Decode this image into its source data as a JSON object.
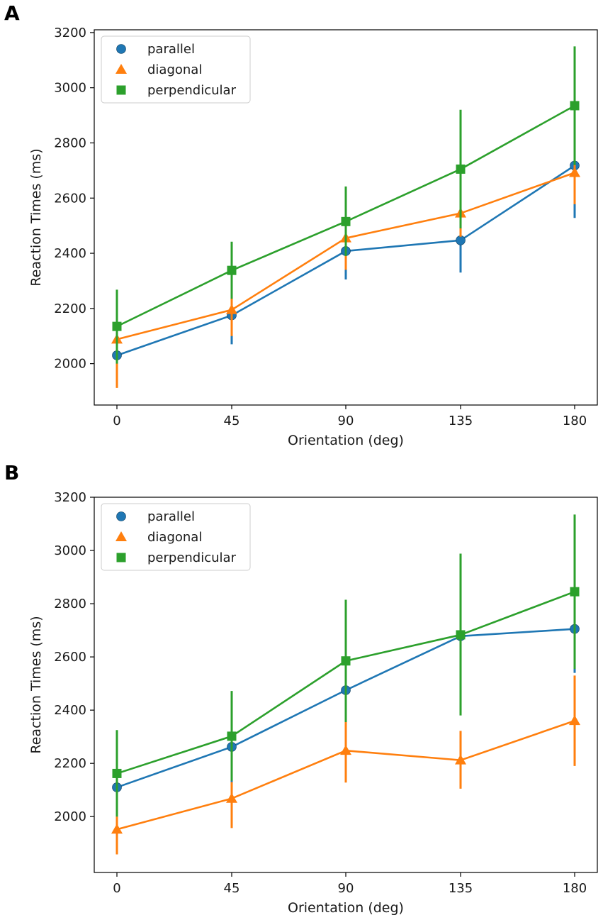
{
  "chart_data": [
    {
      "type": "line",
      "panel_label": "A",
      "xlabel": "Orientation (deg)",
      "ylabel": "Reaction Times (ms)",
      "x": [
        0,
        45,
        90,
        135,
        180
      ],
      "x_tick_labels": [
        "0",
        "45",
        "90",
        "135",
        "180"
      ],
      "ylim": [
        1850,
        3210
      ],
      "y_ticks": [
        2000,
        2200,
        2400,
        2600,
        2800,
        3000,
        3200
      ],
      "y_tick_labels": [
        "2000",
        "2200",
        "2400",
        "2600",
        "2800",
        "3000",
        "3200"
      ],
      "legend_position": "top-left",
      "grid": false,
      "series": [
        {
          "name": "parallel",
          "color": "#1f77b4",
          "marker": "circle",
          "values": [
            2030,
            2175,
            2408,
            2447,
            2718
          ],
          "err_low": [
            1935,
            2070,
            2305,
            2330,
            2528
          ],
          "err_high": [
            2128,
            2280,
            2510,
            2565,
            2908
          ]
        },
        {
          "name": "diagonal",
          "color": "#ff7f0e",
          "marker": "triangle",
          "values": [
            2088,
            2195,
            2455,
            2545,
            2692
          ],
          "err_low": [
            1912,
            2100,
            2340,
            2460,
            2578
          ],
          "err_high": [
            2262,
            2290,
            2570,
            2630,
            2806
          ]
        },
        {
          "name": "perpendicular",
          "color": "#2ca02c",
          "marker": "square",
          "values": [
            2135,
            2338,
            2515,
            2705,
            2935
          ],
          "err_low": [
            2000,
            2235,
            2390,
            2490,
            2720
          ],
          "err_high": [
            2268,
            2442,
            2642,
            2920,
            3150
          ]
        }
      ]
    },
    {
      "type": "line",
      "panel_label": "B",
      "xlabel": "Orientation (deg)",
      "ylabel": "Reaction Times (ms)",
      "x": [
        0,
        45,
        90,
        135,
        180
      ],
      "x_tick_labels": [
        "0",
        "45",
        "90",
        "135",
        "180"
      ],
      "ylim": [
        1790,
        3200
      ],
      "y_ticks": [
        2000,
        2200,
        2400,
        2600,
        2800,
        3000,
        3200
      ],
      "y_tick_labels": [
        "2000",
        "2200",
        "2400",
        "2600",
        "2800",
        "3000",
        "3200"
      ],
      "legend_position": "top-left",
      "grid": false,
      "series": [
        {
          "name": "parallel",
          "color": "#1f77b4",
          "marker": "circle",
          "values": [
            2110,
            2262,
            2475,
            2678,
            2705
          ],
          "err_low": [
            2000,
            2130,
            2355,
            2500,
            2540
          ],
          "err_high": [
            2220,
            2395,
            2595,
            2855,
            2870
          ]
        },
        {
          "name": "diagonal",
          "color": "#ff7f0e",
          "marker": "triangle",
          "values": [
            1952,
            2068,
            2248,
            2212,
            2360
          ],
          "err_low": [
            1858,
            1957,
            2128,
            2105,
            2190
          ],
          "err_high": [
            2000,
            2130,
            2355,
            2322,
            2530
          ]
        },
        {
          "name": "perpendicular",
          "color": "#2ca02c",
          "marker": "square",
          "values": [
            2162,
            2302,
            2585,
            2683,
            2845
          ],
          "err_low": [
            2000,
            2135,
            2355,
            2380,
            2555
          ],
          "err_high": [
            2325,
            2472,
            2815,
            2988,
            3135
          ]
        }
      ]
    }
  ]
}
